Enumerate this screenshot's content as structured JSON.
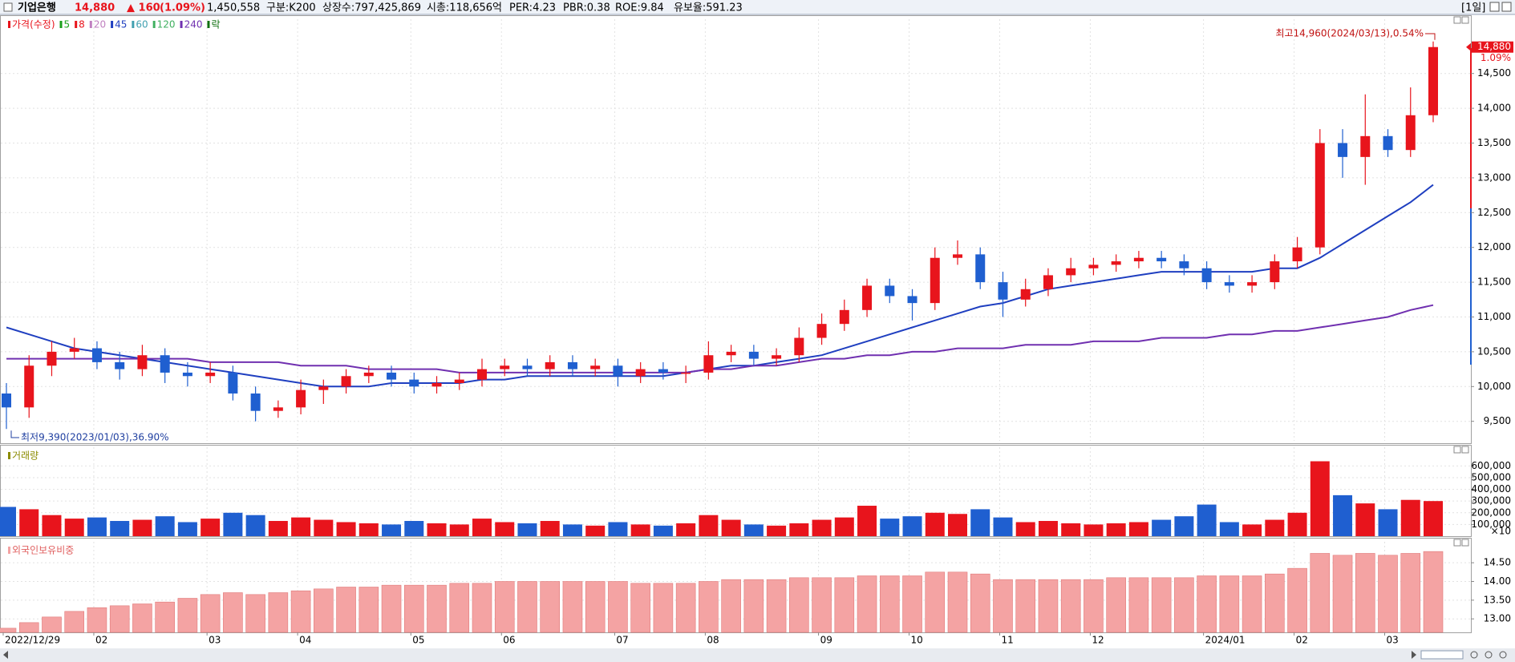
{
  "header": {
    "name": "기업은행",
    "price": "14,880",
    "change": "▲ 160",
    "change_pct": "(1.09%)",
    "volume": "1,450,558",
    "category": "구분:K200",
    "listed": "상장수:797,425,869",
    "market_cap": "시총:118,656억",
    "per": "PER:4.23",
    "pbr": "PBR:0.38",
    "roe": "ROE:9.84",
    "reserve": "유보율:591.23",
    "period": "[1일]"
  },
  "chart_data": [
    {
      "type": "candlestick",
      "legend": [
        {
          "name": "가격(수정)",
          "color": "#e8141c"
        },
        {
          "name": "5",
          "color": "#1aa01a"
        },
        {
          "name": "8",
          "color": "#e8141c"
        },
        {
          "name": "20",
          "color": "#c080c0"
        },
        {
          "name": "45",
          "color": "#1f3fc0"
        },
        {
          "name": "60",
          "color": "#40a0b0"
        },
        {
          "name": "120",
          "color": "#40b060"
        },
        {
          "name": "240",
          "color": "#7030b0"
        },
        {
          "name": "락",
          "color": "#107010"
        }
      ],
      "categories": [
        "2022/12/29",
        null,
        null,
        null,
        "02",
        null,
        null,
        null,
        null,
        "03",
        null,
        null,
        null,
        "04",
        null,
        null,
        null,
        null,
        "05",
        null,
        null,
        null,
        "06",
        null,
        null,
        null,
        null,
        "07",
        null,
        null,
        null,
        "08",
        null,
        null,
        null,
        null,
        "09",
        null,
        null,
        null,
        "10",
        null,
        null,
        null,
        "11",
        null,
        null,
        null,
        "12",
        null,
        null,
        null,
        null,
        "2024/01",
        null,
        null,
        null,
        "02",
        null,
        null,
        null,
        "03",
        null,
        null
      ],
      "open": [
        9900,
        9700,
        10300,
        10500,
        10550,
        10350,
        10250,
        10450,
        10200,
        10150,
        10200,
        9900,
        9650,
        9700,
        9950,
        10000,
        10150,
        10200,
        10100,
        10000,
        10050,
        10100,
        10250,
        10300,
        10250,
        10350,
        10250,
        10300,
        10150,
        10250,
        10200,
        10200,
        10450,
        10500,
        10400,
        10450,
        10700,
        10900,
        11100,
        11450,
        11300,
        11200,
        11850,
        11900,
        11500,
        11250,
        11400,
        11600,
        11700,
        11750,
        11800,
        11850,
        11800,
        11700,
        11500,
        11450,
        11500,
        11800,
        12000,
        13500,
        13300,
        13600,
        13400,
        13900
      ],
      "high": [
        10050,
        10450,
        10650,
        10700,
        10650,
        10500,
        10600,
        10550,
        10350,
        10350,
        10300,
        10000,
        9800,
        10100,
        10100,
        10250,
        10300,
        10300,
        10200,
        10150,
        10200,
        10400,
        10400,
        10400,
        10450,
        10450,
        10400,
        10400,
        10350,
        10350,
        10300,
        10650,
        10600,
        10600,
        10550,
        10850,
        11050,
        11250,
        11550,
        11550,
        11400,
        12000,
        12100,
        12000,
        11650,
        11550,
        11700,
        11850,
        11850,
        11900,
        11950,
        11950,
        11900,
        11800,
        11600,
        11600,
        11900,
        12150,
        13700,
        13700,
        14200,
        13700,
        14300,
        14960
      ],
      "low": [
        9390,
        9550,
        10150,
        10400,
        10250,
        10100,
        10150,
        10050,
        10000,
        10050,
        9800,
        9500,
        9550,
        9600,
        9750,
        9900,
        10050,
        10000,
        9900,
        9900,
        9950,
        10000,
        10150,
        10150,
        10150,
        10150,
        10150,
        10000,
        10050,
        10100,
        10050,
        10100,
        10350,
        10300,
        10300,
        10350,
        10600,
        10800,
        11000,
        11200,
        10950,
        11100,
        11750,
        11400,
        11000,
        11150,
        11300,
        11500,
        11600,
        11650,
        11700,
        11700,
        11600,
        11400,
        11350,
        11350,
        11400,
        11700,
        11900,
        13000,
        12900,
        13300,
        13300,
        13800
      ],
      "close": [
        9700,
        10300,
        10500,
        10550,
        10350,
        10250,
        10450,
        10200,
        10150,
        10200,
        9900,
        9650,
        9700,
        9950,
        10000,
        10150,
        10200,
        10100,
        10000,
        10050,
        10100,
        10250,
        10300,
        10250,
        10350,
        10250,
        10300,
        10150,
        10250,
        10200,
        10200,
        10450,
        10500,
        10400,
        10450,
        10700,
        10900,
        11100,
        11450,
        11300,
        11200,
        11850,
        11900,
        11500,
        11250,
        11400,
        11600,
        11700,
        11750,
        11800,
        11850,
        11800,
        11700,
        11500,
        11450,
        11500,
        11800,
        12000,
        13500,
        13300,
        13600,
        13400,
        13900,
        14880
      ],
      "up_color": "#e8141c",
      "down_color": "#1f5fd0",
      "series": [
        {
          "name": "45",
          "color": "#1f3fc0",
          "values": [
            10850,
            10750,
            10650,
            10550,
            10500,
            10450,
            10400,
            10350,
            10300,
            10250,
            10200,
            10150,
            10100,
            10050,
            10000,
            10000,
            10000,
            10050,
            10050,
            10050,
            10050,
            10100,
            10100,
            10150,
            10150,
            10150,
            10150,
            10150,
            10150,
            10150,
            10200,
            10250,
            10300,
            10300,
            10350,
            10400,
            10450,
            10550,
            10650,
            10750,
            10850,
            10950,
            11050,
            11150,
            11200,
            11300,
            11400,
            11450,
            11500,
            11550,
            11600,
            11650,
            11650,
            11650,
            11650,
            11650,
            11700,
            11700,
            11850,
            12050,
            12250,
            12450,
            12650,
            12900
          ]
        },
        {
          "name": "240",
          "color": "#7030b0",
          "values": [
            10400,
            10400,
            10400,
            10400,
            10400,
            10400,
            10400,
            10400,
            10400,
            10350,
            10350,
            10350,
            10350,
            10300,
            10300,
            10300,
            10250,
            10250,
            10250,
            10250,
            10200,
            10200,
            10200,
            10200,
            10200,
            10200,
            10200,
            10200,
            10200,
            10200,
            10200,
            10250,
            10250,
            10300,
            10300,
            10350,
            10400,
            10400,
            10450,
            10450,
            10500,
            10500,
            10550,
            10550,
            10550,
            10600,
            10600,
            10600,
            10650,
            10650,
            10650,
            10700,
            10700,
            10700,
            10750,
            10750,
            10800,
            10800,
            10850,
            10900,
            10950,
            11000,
            11100,
            11170
          ]
        }
      ],
      "ylim": [
        9220,
        15280
      ],
      "yticks": [
        {
          "value": 9500,
          "label": "9,500"
        },
        {
          "value": 10000,
          "label": "10,000"
        },
        {
          "value": 10500,
          "label": "10,500"
        },
        {
          "value": 11000,
          "label": "11,000"
        },
        {
          "value": 11500,
          "label": "11,500"
        },
        {
          "value": 12000,
          "label": "12,000"
        },
        {
          "value": 12500,
          "label": "12,500"
        },
        {
          "value": 13000,
          "label": "13,000"
        },
        {
          "value": 13500,
          "label": "13,500"
        },
        {
          "value": 14000,
          "label": "14,000"
        },
        {
          "value": 14500,
          "label": "14,500"
        }
      ],
      "grid": true,
      "annotations": {
        "high": "최고14,960(2024/03/13),0.54%",
        "low": "최저9,390(2023/01/03),36.90%"
      },
      "last_label": "14,880",
      "last_change": "1.09%"
    },
    {
      "type": "bar",
      "title": "거래량",
      "unit_note": "×10",
      "values": [
        250000,
        230000,
        180000,
        150000,
        160000,
        130000,
        140000,
        170000,
        120000,
        150000,
        200000,
        180000,
        130000,
        160000,
        140000,
        120000,
        110000,
        100000,
        130000,
        110000,
        100000,
        150000,
        120000,
        110000,
        130000,
        100000,
        90000,
        120000,
        100000,
        90000,
        110000,
        180000,
        140000,
        100000,
        90000,
        110000,
        140000,
        160000,
        260000,
        150000,
        170000,
        200000,
        190000,
        230000,
        160000,
        120000,
        130000,
        110000,
        100000,
        110000,
        120000,
        140000,
        170000,
        270000,
        120000,
        100000,
        140000,
        200000,
        640000,
        350000,
        280000,
        230000,
        310000,
        300000
      ],
      "ylim": [
        0,
        760000
      ],
      "yticks": [
        {
          "value": 100000,
          "label": "100,000"
        },
        {
          "value": 200000,
          "label": "200,000"
        },
        {
          "value": 300000,
          "label": "300,000"
        },
        {
          "value": 400000,
          "label": "400,000"
        },
        {
          "value": 500000,
          "label": "500,000"
        },
        {
          "value": 600000,
          "label": "600,000"
        }
      ],
      "grid": true
    },
    {
      "type": "bar",
      "title": "외국인보유비중",
      "color": "#f4a3a3",
      "values": [
        12.75,
        12.9,
        13.05,
        13.2,
        13.3,
        13.35,
        13.4,
        13.45,
        13.55,
        13.65,
        13.7,
        13.65,
        13.7,
        13.75,
        13.8,
        13.85,
        13.85,
        13.9,
        13.9,
        13.9,
        13.95,
        13.95,
        14.0,
        14.0,
        14.0,
        14.0,
        14.0,
        14.0,
        13.95,
        13.95,
        13.95,
        14.0,
        14.05,
        14.05,
        14.05,
        14.1,
        14.1,
        14.1,
        14.15,
        14.15,
        14.15,
        14.25,
        14.25,
        14.2,
        14.05,
        14.05,
        14.05,
        14.05,
        14.05,
        14.1,
        14.1,
        14.1,
        14.1,
        14.15,
        14.15,
        14.15,
        14.2,
        14.35,
        14.75,
        14.7,
        14.75,
        14.7,
        14.75,
        14.8
      ],
      "ylim": [
        12.64,
        15.06
      ],
      "yticks": [
        {
          "value": 13,
          "label": "13.00"
        },
        {
          "value": 13.5,
          "label": "13.50"
        },
        {
          "value": 14,
          "label": "14.00"
        },
        {
          "value": 14.5,
          "label": "14.50"
        }
      ],
      "grid": true
    }
  ]
}
